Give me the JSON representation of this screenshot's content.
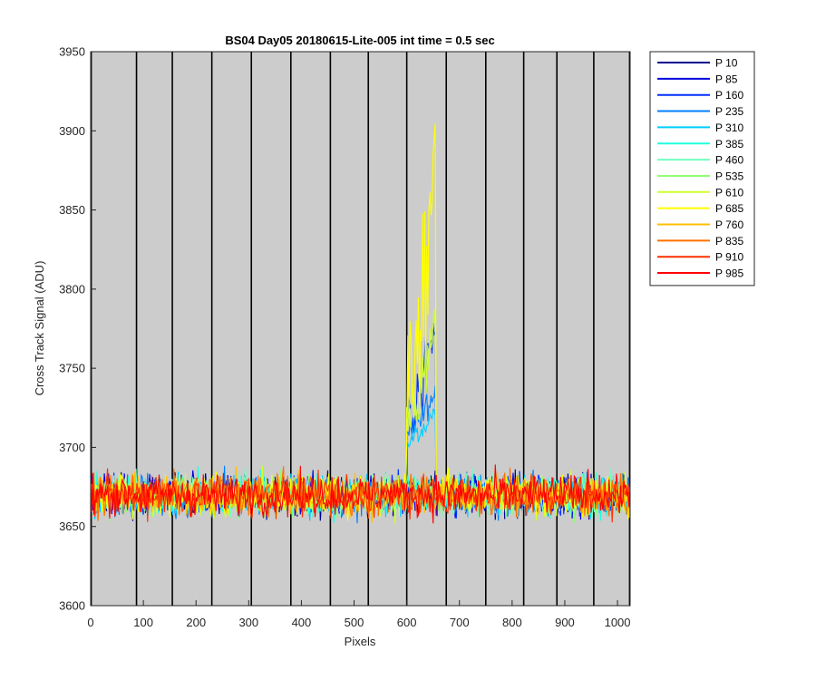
{
  "chart_data": {
    "type": "line",
    "title": "BS04 Day05 20180615-Lite-005 int time = 0.5 sec",
    "xlabel": "Pixels",
    "ylabel": "Cross Track Signal (ADU)",
    "xlim": [
      0,
      1024
    ],
    "ylim": [
      3600,
      3950
    ],
    "xticks": [
      0,
      100,
      200,
      300,
      400,
      500,
      600,
      700,
      800,
      900,
      1000
    ],
    "yticks": [
      3600,
      3650,
      3700,
      3750,
      3800,
      3850,
      3900,
      3950
    ],
    "background": "#cccccc",
    "legend_position": "outside-right",
    "grid": false,
    "tap_boundaries_x": [
      1,
      87,
      155,
      230,
      305,
      380,
      455,
      527,
      600,
      675,
      750,
      822,
      885,
      955,
      1023
    ],
    "baseline": 3670,
    "noise_amplitude": 14,
    "series": [
      {
        "name": "P 10",
        "color": "#00008f"
      },
      {
        "name": "P 85",
        "color": "#0000df"
      },
      {
        "name": "P 160",
        "color": "#0030ff"
      },
      {
        "name": "P 235",
        "color": "#0080ff"
      },
      {
        "name": "P 310",
        "color": "#00cfff"
      },
      {
        "name": "P 385",
        "color": "#20ffdf"
      },
      {
        "name": "P 460",
        "color": "#70ffbf"
      },
      {
        "name": "P 535",
        "color": "#8fff70"
      },
      {
        "name": "P 610",
        "color": "#cfff30"
      },
      {
        "name": "P 685",
        "color": "#ffff00"
      },
      {
        "name": "P 760",
        "color": "#ffbf00"
      },
      {
        "name": "P 835",
        "color": "#ff7000"
      },
      {
        "name": "P 910",
        "color": "#ff3000"
      },
      {
        "name": "P 985",
        "color": "#ff0000"
      }
    ],
    "feature": {
      "x_range": [
        600,
        655
      ],
      "series_peaks": [
        {
          "series": "P 685",
          "peak": 3905
        },
        {
          "series": "P 610",
          "peak": 3790
        },
        {
          "series": "P 160",
          "peak": 3785
        },
        {
          "series": "P 235",
          "peak": 3740
        },
        {
          "series": "P 310",
          "peak": 3725
        }
      ]
    }
  }
}
